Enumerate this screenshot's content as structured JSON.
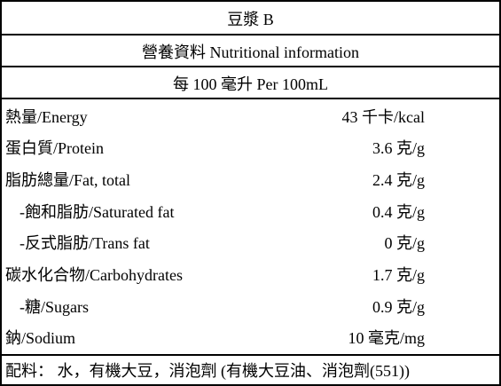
{
  "product_name": "豆漿 B",
  "header": "營養資料  Nutritional information",
  "serving": "每 100 毫升  Per 100mL",
  "nutrients": [
    {
      "name": "熱量/Energy",
      "value": "43 千卡/kcal"
    },
    {
      "name": "蛋白質/Protein",
      "value": "3.6 克/g"
    },
    {
      "name": "脂肪總量/Fat, total",
      "value": "2.4 克/g"
    },
    {
      "name": "-飽和脂肪/Saturated fat",
      "value": "0.4 克/g"
    },
    {
      "name": "-反式脂肪/Trans fat",
      "value": "0 克/g"
    },
    {
      "name": "碳水化合物/Carbohydrates",
      "value": "1.7 克/g"
    },
    {
      "name": "-糖/Sugars",
      "value": "0.9 克/g"
    },
    {
      "name": "鈉/Sodium",
      "value": "10 毫克/mg"
    }
  ],
  "ingredients": "配料：  水，有機大豆，消泡劑 (有機大豆油、消泡劑(551))"
}
